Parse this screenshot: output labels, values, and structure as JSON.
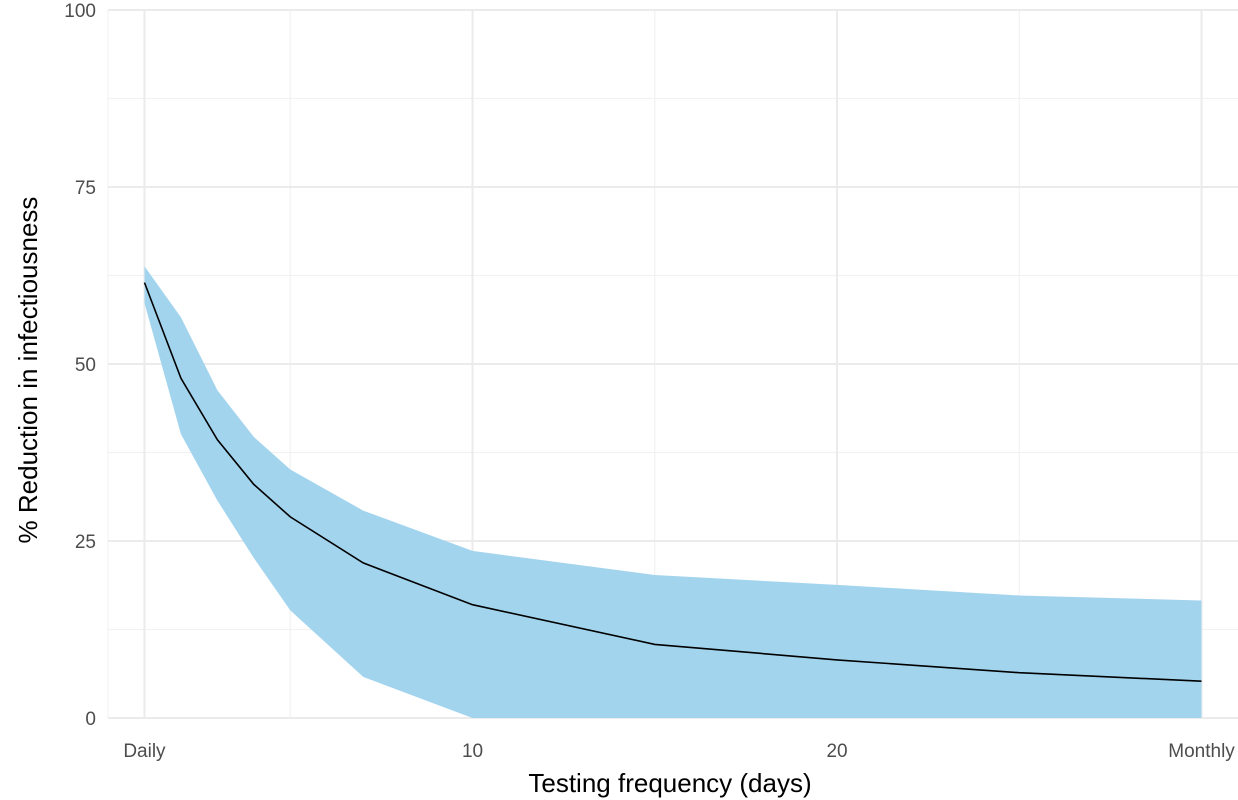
{
  "colors": {
    "ribbon": "#a3d4ee",
    "line": "#000000",
    "grid_major": "#ebebeb",
    "grid_minor": "#f2f2f2",
    "tick_text": "#4d4d4d"
  },
  "chart_data": {
    "type": "area",
    "title": "",
    "xlabel": "Testing frequency (days)",
    "ylabel": "% Reduction in infectiousness",
    "xlim": [
      0,
      31
    ],
    "ylim": [
      0,
      100
    ],
    "grid": true,
    "x_ticks": [
      {
        "value": 1,
        "label": "Daily"
      },
      {
        "value": 10,
        "label": "10"
      },
      {
        "value": 20,
        "label": "20"
      },
      {
        "value": 30,
        "label": "Monthly"
      }
    ],
    "x_minor_ticks": [
      0,
      5,
      15,
      25
    ],
    "y_ticks": [
      {
        "value": 0,
        "label": "0"
      },
      {
        "value": 25,
        "label": "25"
      },
      {
        "value": 50,
        "label": "50"
      },
      {
        "value": 75,
        "label": "75"
      },
      {
        "value": 100,
        "label": "100"
      }
    ],
    "y_minor_ticks": [
      12.5,
      37.5,
      62.5,
      87.5
    ],
    "x": [
      1,
      2,
      3,
      4,
      5,
      7,
      10,
      15,
      20,
      25,
      30
    ],
    "series": [
      {
        "role": "median",
        "values": [
          61.5,
          48.0,
          39.3,
          33.0,
          28.4,
          21.9,
          16.0,
          10.4,
          8.2,
          6.4,
          5.2
        ]
      },
      {
        "role": "upper",
        "values": [
          63.8,
          56.6,
          46.3,
          39.7,
          35.1,
          29.3,
          23.6,
          20.2,
          18.8,
          17.3,
          16.6
        ]
      },
      {
        "role": "lower",
        "values": [
          58.6,
          40.1,
          30.7,
          22.6,
          15.2,
          5.8,
          0,
          0,
          0,
          0,
          0
        ]
      }
    ]
  }
}
